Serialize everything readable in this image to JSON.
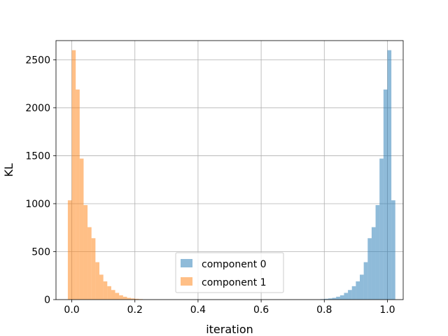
{
  "chart_data": {
    "type": "bar",
    "xlabel": "iteration",
    "ylabel": "KL",
    "xlim": [
      -0.05,
      1.05
    ],
    "ylim": [
      0,
      2700
    ],
    "xticks": [
      "0.0",
      "0.2",
      "0.4",
      "0.6",
      "0.8",
      "1.0"
    ],
    "xtick_values": [
      0.0,
      0.2,
      0.4,
      0.6,
      0.8,
      1.0
    ],
    "yticks": [
      "0",
      "500",
      "1000",
      "1500",
      "2000",
      "2500"
    ],
    "ytick_values": [
      0,
      500,
      1000,
      1500,
      2000,
      2500
    ],
    "grid": true,
    "legend_position": "lower-center",
    "bin_width": 0.0125,
    "series": [
      {
        "name": "component 0",
        "color": "#1f77b4",
        "bins": [
          {
            "x": 0.8,
            "y": 5
          },
          {
            "x": 0.8125,
            "y": 8
          },
          {
            "x": 0.825,
            "y": 12
          },
          {
            "x": 0.8375,
            "y": 18
          },
          {
            "x": 0.85,
            "y": 30
          },
          {
            "x": 0.8625,
            "y": 45
          },
          {
            "x": 0.875,
            "y": 70
          },
          {
            "x": 0.8875,
            "y": 100
          },
          {
            "x": 0.9,
            "y": 140
          },
          {
            "x": 0.9125,
            "y": 190
          },
          {
            "x": 0.925,
            "y": 260
          },
          {
            "x": 0.9375,
            "y": 390
          },
          {
            "x": 0.95,
            "y": 640
          },
          {
            "x": 0.9625,
            "y": 755
          },
          {
            "x": 0.975,
            "y": 985
          },
          {
            "x": 0.9875,
            "y": 1470
          },
          {
            "x": 1.0,
            "y": 2190
          },
          {
            "x": 1.0125,
            "y": 2600
          },
          {
            "x": 1.025,
            "y": 1035
          }
        ]
      },
      {
        "name": "component 1",
        "color": "#ff7f0e",
        "bins": [
          {
            "x": 0.0,
            "y": 1035
          },
          {
            "x": 0.0125,
            "y": 2600
          },
          {
            "x": 0.025,
            "y": 2190
          },
          {
            "x": 0.0375,
            "y": 1470
          },
          {
            "x": 0.05,
            "y": 985
          },
          {
            "x": 0.0625,
            "y": 755
          },
          {
            "x": 0.075,
            "y": 640
          },
          {
            "x": 0.0875,
            "y": 390
          },
          {
            "x": 0.1,
            "y": 260
          },
          {
            "x": 0.1125,
            "y": 190
          },
          {
            "x": 0.125,
            "y": 140
          },
          {
            "x": 0.1375,
            "y": 100
          },
          {
            "x": 0.15,
            "y": 70
          },
          {
            "x": 0.1625,
            "y": 45
          },
          {
            "x": 0.175,
            "y": 30
          },
          {
            "x": 0.1875,
            "y": 18
          },
          {
            "x": 0.2,
            "y": 12
          },
          {
            "x": 0.2125,
            "y": 8
          },
          {
            "x": 0.225,
            "y": 5
          }
        ]
      }
    ]
  }
}
